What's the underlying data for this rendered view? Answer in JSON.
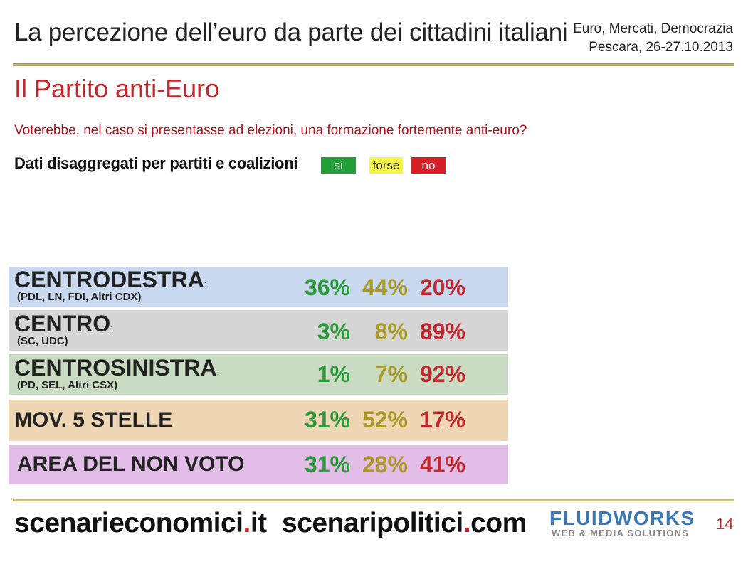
{
  "header": {
    "title": "La percezione dell’euro da parte dei cittadini italiani",
    "event_line1": "Euro, Mercati, Democrazia",
    "event_line2": "Pescara, 26-27.10.2013"
  },
  "subtitle": "Il Partito anti-Euro",
  "question": "Voterebbe, nel caso si presentasse ad elezioni, una formazione fortemente anti-euro?",
  "breakdown_label": "Dati disaggregati per partiti e coalizioni",
  "legend": {
    "si": "si",
    "forse": "forse",
    "no": "no"
  },
  "colors": {
    "si": "#21a038",
    "forse": "#f5f542",
    "no": "#d41f26",
    "centrodestra": "#c9d9ef",
    "centro": "#d6d6d6",
    "centrosinistra": "#c9dcc3",
    "m5s": "#efd6b4",
    "non_voto": "#e2bde8"
  },
  "rows": [
    {
      "name": "CENTRODESTRA",
      "colon": ":",
      "sub": "(PDL, LN, FDI, Altri CDX)",
      "si": "36%",
      "forse": "44%",
      "no": "20%"
    },
    {
      "name": "CENTRO",
      "colon": ":",
      "sub": "(SC, UDC)",
      "si": "3%",
      "forse": "8%",
      "no": "89%"
    },
    {
      "name": "CENTROSINISTRA",
      "colon": ":",
      "sub": "(PD, SEL, Altri CSX)",
      "si": "1%",
      "forse": "7%",
      "no": "92%"
    },
    {
      "name": "MOV. 5 STELLE",
      "si": "31%",
      "forse": "52%",
      "no": "17%"
    },
    {
      "name": "AREA DEL NON VOTO",
      "si": "31%",
      "forse": "28%",
      "no": "41%"
    }
  ],
  "footer": {
    "site1_name": "scenarieconomici",
    "site1_dot": ".",
    "site1_tld": "it",
    "site2_name": "scenaripolitici",
    "site2_dot": ".",
    "site2_tld": "com",
    "logo_main": "FLUIDWORKS",
    "logo_sub": "WEB & MEDIA SOLUTIONS",
    "page_number": "14"
  }
}
